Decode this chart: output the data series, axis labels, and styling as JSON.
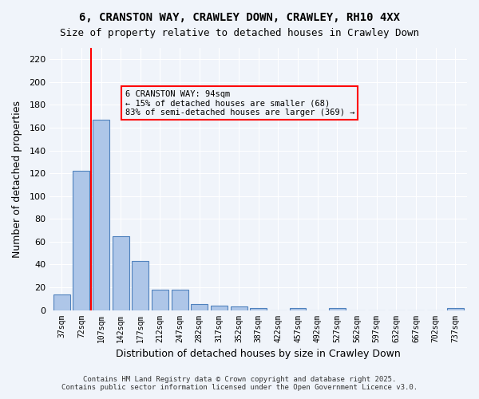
{
  "title1": "6, CRANSTON WAY, CRAWLEY DOWN, CRAWLEY, RH10 4XX",
  "title2": "Size of property relative to detached houses in Crawley Down",
  "xlabel": "Distribution of detached houses by size in Crawley Down",
  "ylabel": "Number of detached properties",
  "categories": [
    "37sqm",
    "72sqm",
    "107sqm",
    "142sqm",
    "177sqm",
    "212sqm",
    "247sqm",
    "282sqm",
    "317sqm",
    "352sqm",
    "387sqm",
    "422sqm",
    "457sqm",
    "492sqm",
    "527sqm",
    "562sqm",
    "597sqm",
    "632sqm",
    "667sqm",
    "702sqm",
    "737sqm"
  ],
  "bar_values": [
    14,
    122,
    167,
    65,
    43,
    18,
    18,
    5,
    4,
    3,
    2,
    0,
    2,
    0,
    2,
    0,
    0,
    0,
    0,
    0,
    2
  ],
  "bar_color": "#aec6e8",
  "bar_edge_color": "#4f81bd",
  "vline_x": 1.5,
  "vline_color": "red",
  "annotation_title": "6 CRANSTON WAY: 94sqm",
  "annotation_line1": "← 15% of detached houses are smaller (68)",
  "annotation_line2": "83% of semi-detached houses are larger (369) →",
  "annotation_box_color": "red",
  "ylim": [
    0,
    230
  ],
  "yticks": [
    0,
    20,
    40,
    60,
    80,
    100,
    120,
    140,
    160,
    180,
    200,
    220
  ],
  "footer1": "Contains HM Land Registry data © Crown copyright and database right 2025.",
  "footer2": "Contains public sector information licensed under the Open Government Licence v3.0.",
  "background_color": "#f0f4fa",
  "grid_color": "#ffffff"
}
